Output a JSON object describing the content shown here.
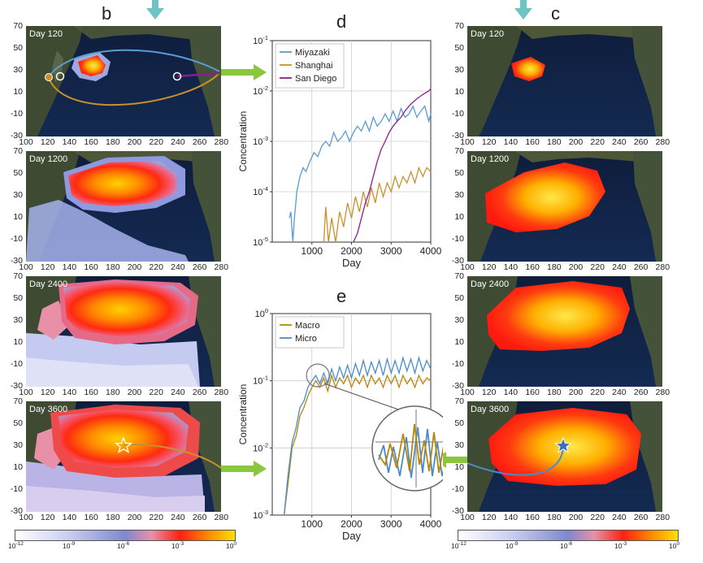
{
  "panels": {
    "b": "b",
    "c": "c",
    "d": "d",
    "e": "e"
  },
  "maps": {
    "b": [
      {
        "day_label": "Day 120"
      },
      {
        "day_label": "Day 1200"
      },
      {
        "day_label": "Day 2400"
      },
      {
        "day_label": "Day 3600"
      }
    ],
    "c": [
      {
        "day_label": "Day 120"
      },
      {
        "day_label": "Day 1200"
      },
      {
        "day_label": "Day 2400"
      },
      {
        "day_label": "Day 3600"
      }
    ]
  },
  "map_axes": {
    "x_ticks": [
      "100",
      "120",
      "140",
      "160",
      "180",
      "200",
      "220",
      "240",
      "260",
      "280"
    ],
    "y_ticks": [
      "70",
      "50",
      "30",
      "10",
      "-10",
      "-30"
    ]
  },
  "colorbar": {
    "ticks": [
      {
        "base": "10",
        "exp": "-12"
      },
      {
        "base": "10",
        "exp": "-9"
      },
      {
        "base": "10",
        "exp": "-6"
      },
      {
        "base": "10",
        "exp": "-3"
      },
      {
        "base": "10",
        "exp": "0"
      }
    ],
    "colors": [
      "#ffffff",
      "#9fa8e0",
      "#ff2010",
      "#ffe000"
    ]
  },
  "colors": {
    "miyazaki": "#5a9bd3",
    "shanghai": "#c8922a",
    "san_diego": "#8a1f8f",
    "macro": "#b8860b",
    "micro": "#4a8cc8",
    "arrow_green": "#8cc63f",
    "arrow_teal": "#6cc4c4"
  },
  "chart_data": [
    {
      "type": "line",
      "panel": "d",
      "title": "d",
      "xlabel": "Day",
      "ylabel": "Concentration",
      "yscale": "log",
      "xlim": [
        0,
        4000
      ],
      "ylim_exp": [
        -5,
        -1
      ],
      "x_ticks": [
        "1000",
        "2000",
        "3000",
        "4000"
      ],
      "y_ticks": [
        {
          "base": "10",
          "exp": "-1"
        },
        {
          "base": "10",
          "exp": "-2"
        },
        {
          "base": "10",
          "exp": "-3"
        },
        {
          "base": "10",
          "exp": "-4"
        },
        {
          "base": "10",
          "exp": "-5"
        }
      ],
      "legend": [
        "Miyazaki",
        "Shanghai",
        "San Diego"
      ],
      "series": [
        {
          "name": "Miyazaki",
          "x": [
            430,
            470,
            520,
            560,
            620,
            700,
            780,
            850,
            950,
            1050,
            1150,
            1250,
            1350,
            1450,
            1550,
            1650,
            1750,
            1850,
            1950,
            2050,
            2150,
            2250,
            2350,
            2450,
            2550,
            2650,
            2750,
            2850,
            2950,
            3050,
            3150,
            3250,
            3350,
            3450,
            3550,
            3650,
            3750,
            3850,
            3950,
            4000
          ],
          "y": [
            3e-05,
            4e-05,
            1e-05,
            3e-05,
            0.0001,
            0.0002,
            0.0003,
            0.00025,
            0.0004,
            0.0006,
            0.0005,
            0.0008,
            0.001,
            0.0008,
            0.0015,
            0.001,
            0.0012,
            0.0016,
            0.001,
            0.0015,
            0.002,
            0.0016,
            0.0025,
            0.0016,
            0.003,
            0.002,
            0.0025,
            0.0035,
            0.0025,
            0.004,
            0.0025,
            0.0045,
            0.003,
            0.0035,
            0.005,
            0.003,
            0.004,
            0.005,
            0.0025,
            0.0035
          ]
        },
        {
          "name": "Shanghai",
          "x": [
            1300,
            1350,
            1420,
            1500,
            1600,
            1700,
            1800,
            1900,
            2000,
            2100,
            2200,
            2300,
            2400,
            2500,
            2600,
            2700,
            2800,
            2900,
            3000,
            3100,
            3200,
            3300,
            3400,
            3500,
            3600,
            3700,
            3800,
            3900,
            4000
          ],
          "y": [
            1e-05,
            5e-05,
            1e-05,
            3e-05,
            1e-05,
            4e-05,
            2e-05,
            6e-05,
            3e-05,
            8e-05,
            4e-05,
            0.0001,
            5e-05,
            0.00012,
            6e-05,
            0.00015,
            8e-05,
            0.00015,
            0.0001,
            0.0002,
            0.00012,
            0.0002,
            0.00015,
            0.00025,
            0.00015,
            0.0003,
            0.0002,
            0.0003,
            0.00025
          ]
        },
        {
          "name": "San Diego",
          "x": [
            2050,
            2150,
            2250,
            2350,
            2450,
            2550,
            2650,
            2750,
            2850,
            2950,
            3050,
            3150,
            3250,
            3350,
            3450,
            3550,
            3650,
            3750,
            3850,
            3950,
            4000
          ],
          "y": [
            1e-05,
            1.5e-05,
            3e-05,
            6e-05,
            0.0001,
            0.0002,
            0.0004,
            0.0007,
            0.001,
            0.0015,
            0.002,
            0.0025,
            0.003,
            0.004,
            0.005,
            0.006,
            0.007,
            0.008,
            0.009,
            0.01,
            0.011
          ]
        }
      ]
    },
    {
      "type": "line",
      "panel": "e",
      "title": "e",
      "xlabel": "Day",
      "ylabel": "Concentration",
      "yscale": "log",
      "xlim": [
        0,
        4000
      ],
      "ylim_exp": [
        -3,
        0
      ],
      "x_ticks": [
        "1000",
        "2000",
        "3000",
        "4000"
      ],
      "y_ticks": [
        {
          "base": "10",
          "exp": "0"
        },
        {
          "base": "10",
          "exp": "-1"
        },
        {
          "base": "10",
          "exp": "-2"
        },
        {
          "base": "10",
          "exp": "-3"
        }
      ],
      "legend": [
        "Macro",
        "Micro"
      ],
      "series": [
        {
          "name": "Macro",
          "x": [
            300,
            400,
            500,
            600,
            700,
            800,
            900,
            1000,
            1100,
            1200,
            1300,
            1400,
            1500,
            1600,
            1700,
            1800,
            1900,
            2000,
            2100,
            2200,
            2300,
            2400,
            2500,
            2600,
            2700,
            2800,
            2900,
            3000,
            3100,
            3200,
            3300,
            3400,
            3500,
            3600,
            3700,
            3800,
            3900,
            4000
          ],
          "y": [
            0.001,
            0.003,
            0.01,
            0.015,
            0.03,
            0.04,
            0.06,
            0.08,
            0.1,
            0.08,
            0.11,
            0.07,
            0.12,
            0.08,
            0.11,
            0.09,
            0.12,
            0.08,
            0.11,
            0.09,
            0.12,
            0.08,
            0.12,
            0.09,
            0.11,
            0.08,
            0.12,
            0.09,
            0.12,
            0.08,
            0.12,
            0.09,
            0.11,
            0.08,
            0.12,
            0.09,
            0.11,
            0.1
          ]
        },
        {
          "name": "Micro",
          "x": [
            300,
            400,
            500,
            600,
            700,
            800,
            900,
            1000,
            1100,
            1200,
            1300,
            1400,
            1500,
            1600,
            1700,
            1800,
            1900,
            2000,
            2100,
            2200,
            2300,
            2400,
            2500,
            2600,
            2700,
            2800,
            2900,
            3000,
            3100,
            3200,
            3300,
            3400,
            3500,
            3600,
            3700,
            3800,
            3900,
            4000
          ],
          "y": [
            0.001,
            0.004,
            0.012,
            0.02,
            0.04,
            0.05,
            0.08,
            0.1,
            0.12,
            0.09,
            0.13,
            0.09,
            0.15,
            0.1,
            0.16,
            0.11,
            0.17,
            0.11,
            0.18,
            0.12,
            0.2,
            0.12,
            0.19,
            0.13,
            0.2,
            0.12,
            0.21,
            0.13,
            0.2,
            0.13,
            0.22,
            0.14,
            0.21,
            0.13,
            0.22,
            0.14,
            0.2,
            0.15
          ]
        }
      ]
    }
  ]
}
